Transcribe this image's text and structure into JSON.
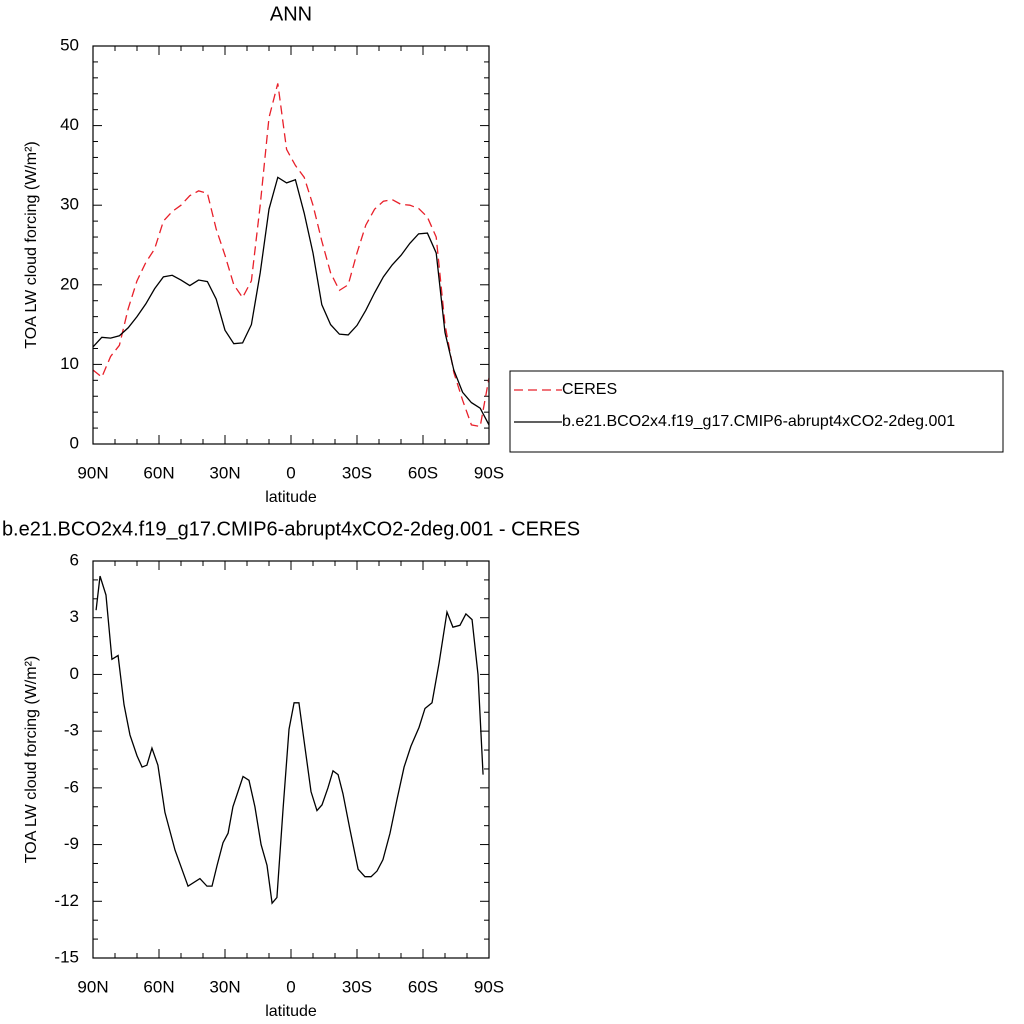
{
  "chart_data": [
    {
      "type": "line",
      "title": "ANN",
      "xlabel": "latitude",
      "ylabel": "TOA LW cloud forcing (W/m²)",
      "x": [
        90,
        86,
        82,
        78,
        74,
        70,
        66,
        62,
        58,
        54,
        50,
        46,
        42,
        38,
        34,
        30,
        26,
        22,
        18,
        14,
        10,
        6,
        2,
        -2,
        -6,
        -10,
        -14,
        -18,
        -22,
        -26,
        -30,
        -34,
        -38,
        -42,
        -46,
        -50,
        -54,
        -58,
        -62,
        -66,
        -70,
        -74,
        -78,
        -82,
        -86,
        -90
      ],
      "series": [
        {
          "name": "CERES",
          "color": "#e8202a",
          "dash": "dashed",
          "values": [
            9.3,
            8.4,
            11,
            12.4,
            17,
            20.5,
            22.8,
            24.5,
            28,
            29.2,
            30,
            31.2,
            31.8,
            31.5,
            27,
            23.7,
            20,
            18.4,
            20.5,
            30,
            41,
            45.3,
            37,
            35,
            33.5,
            30,
            25.5,
            21.5,
            19.3,
            20,
            24,
            27.5,
            29.5,
            30.5,
            30.7,
            30.1,
            30,
            29.6,
            28.5,
            26,
            15,
            9,
            5.5,
            2.4,
            2.2,
            8.3
          ]
        },
        {
          "name": "b.e21.BCO2x4.f19_g17.CMIP6-abrupt4xCO2-2deg.001",
          "color": "#000000",
          "dash": "solid",
          "values": [
            12.2,
            13.4,
            13.3,
            13.6,
            14.6,
            16,
            17.6,
            19.5,
            21,
            21.2,
            20.6,
            19.9,
            20.6,
            20.4,
            18.2,
            14.3,
            12.6,
            12.7,
            15,
            21.5,
            29.5,
            33.5,
            32.8,
            33.2,
            29,
            24,
            17.5,
            15,
            13.8,
            13.7,
            14.9,
            16.8,
            19,
            21,
            22.5,
            23.7,
            25.2,
            26.4,
            26.5,
            24,
            14,
            9.3,
            6.5,
            5.2,
            4.5,
            2.4
          ]
        }
      ],
      "xlim": [
        90,
        -90
      ],
      "xticks": [
        {
          "value": 90,
          "label": "90N"
        },
        {
          "value": 60,
          "label": "60N"
        },
        {
          "value": 30,
          "label": "30N"
        },
        0,
        {
          "value": -30,
          "label": "30S"
        },
        {
          "value": -60,
          "label": "60S"
        },
        {
          "value": -90,
          "label": "90S"
        }
      ],
      "ylim": [
        0,
        50
      ],
      "yticks": [
        0,
        10,
        20,
        30,
        40,
        50
      ],
      "legend": "right"
    },
    {
      "type": "line",
      "title": "b.e21.BCO2x4.f19_g17.CMIP6-abrupt4xCO2-2deg.001 - CERES",
      "xlabel": "latitude",
      "ylabel": "TOA LW cloud forcing (W/m²)",
      "x": [
        88.6,
        86.8,
        84.1,
        81.4,
        78.6,
        75.9,
        73.2,
        70,
        67.7,
        65.5,
        63.2,
        60.5,
        57.3,
        52.7,
        46.8,
        41.4,
        38.2,
        35.9,
        33.6,
        30.9,
        28.6,
        26.4,
        21.8,
        19.1,
        16.4,
        13.6,
        10.9,
        8.6,
        6.4,
        3.6,
        0.9,
        -1.4,
        -3.6,
        -6.4,
        -9.1,
        -11.8,
        -14.1,
        -16.8,
        -19.1,
        -21.4,
        -23.6,
        -26.8,
        -30.5,
        -33.6,
        -36.4,
        -39.1,
        -41.8,
        -45,
        -48.2,
        -51.4,
        -54.5,
        -58.2,
        -60.9,
        -64.1,
        -67.3,
        -70.9,
        -73.6,
        -76.8,
        -79.5,
        -82.3,
        -85,
        -87.3
      ],
      "values": [
        3.4,
        5.2,
        4.2,
        0.8,
        1,
        -1.6,
        -3.2,
        -4.3,
        -4.9,
        -4.8,
        -3.9,
        -4.8,
        -7.3,
        -9.3,
        -11.2,
        -10.8,
        -11.2,
        -11.2,
        -10.1,
        -8.9,
        -8.4,
        -7,
        -5.4,
        -5.6,
        -7,
        -9,
        -10.1,
        -12.1,
        -11.8,
        -7.1,
        -2.9,
        -1.5,
        -1.5,
        -3.9,
        -6.2,
        -7.2,
        -6.9,
        -6,
        -5.1,
        -5.3,
        -6.3,
        -8.2,
        -10.3,
        -10.7,
        -10.7,
        -10.4,
        -9.8,
        -8.4,
        -6.6,
        -4.9,
        -3.8,
        -2.8,
        -1.8,
        -1.5,
        0.6,
        3.3,
        2.5,
        2.6,
        3.2,
        2.9,
        0,
        -5.3
      ],
      "color": "#000000",
      "xlim": [
        90,
        -90
      ],
      "xticks": [
        {
          "value": 90,
          "label": "90N"
        },
        {
          "value": 60,
          "label": "60N"
        },
        {
          "value": 30,
          "label": "30N"
        },
        0,
        {
          "value": -30,
          "label": "30S"
        },
        {
          "value": -60,
          "label": "60S"
        },
        {
          "value": -90,
          "label": "90S"
        }
      ],
      "ylim": [
        -15,
        6
      ],
      "yticks": [
        -15,
        -12,
        -9,
        -6,
        -3,
        0,
        3,
        6
      ]
    }
  ]
}
